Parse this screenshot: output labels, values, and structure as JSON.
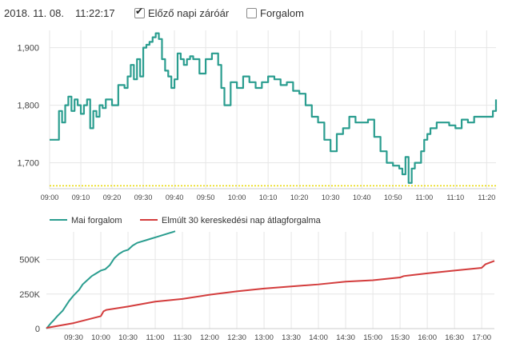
{
  "header": {
    "date": "2018. 11. 08.",
    "time": "11:22:17",
    "checkbox_prev_close": {
      "label": "Előző napi záróár",
      "checked": true
    },
    "checkbox_volume": {
      "label": "Forgalom",
      "checked": false
    }
  },
  "colors": {
    "price": "#2a9d8f",
    "volume_avg": "#d33c3c",
    "prev_close": "#e8d800",
    "grid": "#e6e6e6"
  },
  "chart_data": [
    {
      "type": "line",
      "yticks": [
        "1,700",
        "1,800",
        "1,900"
      ],
      "ytick_values": [
        1700,
        1800,
        1900
      ],
      "xticks": [
        "09:00",
        "09:10",
        "09:20",
        "09:30",
        "09:40",
        "09:50",
        "10:00",
        "10:10",
        "10:20",
        "10:30",
        "10:40",
        "10:50",
        "11:00",
        "11:10",
        "11:20"
      ],
      "xlim": [
        0,
        143
      ],
      "ylim": [
        1655,
        1930
      ],
      "prev_close": 1660,
      "series": [
        {
          "x": [
            0,
            2,
            3,
            4,
            5,
            6,
            7,
            8,
            9,
            10,
            11,
            12,
            13,
            14,
            15,
            16,
            17,
            18,
            20,
            22,
            24,
            25,
            26,
            27,
            28,
            29,
            30,
            31,
            32,
            33,
            34,
            35,
            36,
            37,
            38,
            39,
            40,
            41,
            42,
            43,
            44,
            45,
            46,
            48,
            50,
            52,
            54,
            55,
            56,
            58,
            60,
            62,
            64,
            66,
            68,
            69,
            70,
            72,
            74,
            76,
            78,
            80,
            82,
            84,
            86,
            88,
            90,
            92,
            94,
            96,
            98,
            100,
            102,
            104,
            106,
            108,
            110,
            112,
            113,
            114,
            115,
            116,
            117,
            118,
            119,
            120,
            121,
            122,
            124,
            126,
            128,
            130,
            132,
            134,
            136,
            138,
            140,
            142,
            143
          ],
          "y": [
            1740,
            1740,
            1790,
            1770,
            1800,
            1815,
            1790,
            1810,
            1800,
            1785,
            1800,
            1810,
            1760,
            1790,
            1780,
            1800,
            1795,
            1810,
            1800,
            1835,
            1830,
            1850,
            1870,
            1845,
            1880,
            1850,
            1900,
            1905,
            1910,
            1918,
            1925,
            1915,
            1880,
            1860,
            1850,
            1830,
            1845,
            1890,
            1880,
            1870,
            1880,
            1885,
            1880,
            1855,
            1880,
            1890,
            1870,
            1830,
            1800,
            1840,
            1830,
            1850,
            1840,
            1830,
            1840,
            1840,
            1850,
            1845,
            1835,
            1840,
            1825,
            1820,
            1800,
            1780,
            1770,
            1740,
            1720,
            1750,
            1760,
            1780,
            1770,
            1770,
            1775,
            1745,
            1720,
            1700,
            1695,
            1690,
            1680,
            1710,
            1665,
            1690,
            1700,
            1700,
            1720,
            1740,
            1750,
            1760,
            1770,
            1770,
            1765,
            1760,
            1775,
            1770,
            1780,
            1780,
            1780,
            1790,
            1810
          ]
        }
      ]
    },
    {
      "type": "line",
      "yticks": [
        "0",
        "250K",
        "500K"
      ],
      "ytick_values": [
        0,
        250000,
        500000
      ],
      "xticks": [
        "09:30",
        "10:00",
        "10:30",
        "11:00",
        "11:30",
        "12:00",
        "12:30",
        "13:00",
        "13:30",
        "14:00",
        "14:30",
        "15:00",
        "15:30",
        "16:00",
        "16:30",
        "17:00"
      ],
      "xlim": [
        0,
        494
      ],
      "ylim": [
        0,
        700000
      ],
      "series": [
        {
          "name": "Mai forgalom",
          "x": [
            0,
            5,
            8,
            12,
            18,
            22,
            25,
            30,
            36,
            40,
            45,
            50,
            55,
            60,
            65,
            70,
            75,
            80,
            85,
            90,
            95,
            100,
            105,
            110,
            115,
            120,
            125,
            130,
            135,
            140,
            142
          ],
          "y": [
            0,
            40000,
            60000,
            90000,
            130000,
            170000,
            200000,
            240000,
            280000,
            320000,
            350000,
            380000,
            400000,
            420000,
            430000,
            460000,
            510000,
            540000,
            560000,
            570000,
            600000,
            620000,
            630000,
            640000,
            650000,
            660000,
            670000,
            680000,
            690000,
            700000,
            705000
          ]
        },
        {
          "name": "Elmúlt 30 kereskedési nap átlagforgalma",
          "x": [
            0,
            30,
            60,
            63,
            66,
            90,
            120,
            150,
            180,
            210,
            240,
            270,
            300,
            330,
            360,
            390,
            394,
            420,
            450,
            480,
            484,
            494
          ],
          "y": [
            5000,
            40000,
            90000,
            125000,
            135000,
            160000,
            195000,
            215000,
            245000,
            270000,
            290000,
            305000,
            320000,
            340000,
            350000,
            370000,
            380000,
            400000,
            420000,
            440000,
            465000,
            490000
          ]
        }
      ]
    }
  ]
}
